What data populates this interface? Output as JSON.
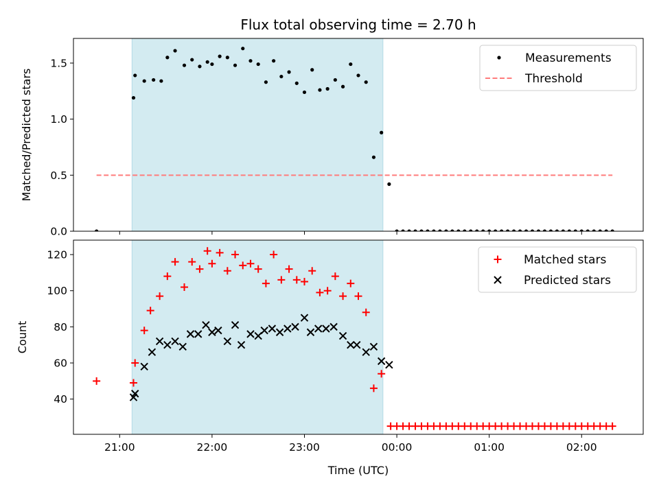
{
  "chart_data": {
    "title": "Flux total observing time = 2.70 h",
    "xlabel": "Time (UTC)",
    "x_unit": "hours UTC",
    "xlim": [
      "20:30",
      "02:40"
    ],
    "x_ticks": [
      {
        "value": "21:00",
        "label": "21:00"
      },
      {
        "value": "22:00",
        "label": "22:00"
      },
      {
        "value": "23:00",
        "label": "23:00"
      },
      {
        "value": "00:00",
        "label": "00:00"
      },
      {
        "value": "01:00",
        "label": "01:00"
      },
      {
        "value": "02:00",
        "label": "02:00"
      }
    ],
    "shaded_span": {
      "start": "21:08",
      "end": "23:51",
      "color": "#d3ebf1"
    },
    "panels": [
      {
        "type": "scatter",
        "ylabel": "Matched/Predicted stars",
        "ylim": [
          0,
          1.72
        ],
        "y_ticks": [
          "0.0",
          "0.5",
          "1.0",
          "1.5"
        ],
        "legend_position": "top-right",
        "series": [
          {
            "name": "Measurements",
            "marker": "dot",
            "color": "#000000",
            "points": [
              [
                "20:45",
                0.0
              ],
              [
                "21:09",
                1.19
              ],
              [
                "21:10",
                1.39
              ],
              [
                "21:16",
                1.34
              ],
              [
                "21:22",
                1.35
              ],
              [
                "21:27",
                1.34
              ],
              [
                "21:31",
                1.55
              ],
              [
                "21:36",
                1.61
              ],
              [
                "21:42",
                1.48
              ],
              [
                "21:47",
                1.53
              ],
              [
                "21:52",
                1.47
              ],
              [
                "21:57",
                1.51
              ],
              [
                "22:00",
                1.49
              ],
              [
                "22:05",
                1.56
              ],
              [
                "22:10",
                1.55
              ],
              [
                "22:15",
                1.48
              ],
              [
                "22:20",
                1.63
              ],
              [
                "22:25",
                1.52
              ],
              [
                "22:30",
                1.49
              ],
              [
                "22:35",
                1.33
              ],
              [
                "22:40",
                1.52
              ],
              [
                "22:45",
                1.38
              ],
              [
                "22:50",
                1.42
              ],
              [
                "22:55",
                1.32
              ],
              [
                "23:00",
                1.24
              ],
              [
                "23:05",
                1.44
              ],
              [
                "23:10",
                1.26
              ],
              [
                "23:15",
                1.27
              ],
              [
                "23:20",
                1.35
              ],
              [
                "23:25",
                1.29
              ],
              [
                "23:30",
                1.49
              ],
              [
                "23:35",
                1.39
              ],
              [
                "23:40",
                1.33
              ],
              [
                "23:45",
                0.66
              ],
              [
                "23:50",
                0.88
              ],
              [
                "23:55",
                0.42
              ],
              [
                "00:00",
                0.0
              ],
              [
                "00:04",
                0.0
              ],
              [
                "00:08",
                0.0
              ],
              [
                "00:12",
                0.0
              ],
              [
                "00:16",
                0.0
              ],
              [
                "00:20",
                0.0
              ],
              [
                "00:24",
                0.0
              ],
              [
                "00:28",
                0.0
              ],
              [
                "00:32",
                0.0
              ],
              [
                "00:36",
                0.0
              ],
              [
                "00:40",
                0.0
              ],
              [
                "00:44",
                0.0
              ],
              [
                "00:48",
                0.0
              ],
              [
                "00:52",
                0.0
              ],
              [
                "00:56",
                0.0
              ],
              [
                "01:00",
                0.0
              ],
              [
                "01:04",
                0.0
              ],
              [
                "01:08",
                0.0
              ],
              [
                "01:12",
                0.0
              ],
              [
                "01:16",
                0.0
              ],
              [
                "01:20",
                0.0
              ],
              [
                "01:24",
                0.0
              ],
              [
                "01:28",
                0.0
              ],
              [
                "01:32",
                0.0
              ],
              [
                "01:36",
                0.0
              ],
              [
                "01:40",
                0.0
              ],
              [
                "01:44",
                0.0
              ],
              [
                "01:48",
                0.0
              ],
              [
                "01:52",
                0.0
              ],
              [
                "01:56",
                0.0
              ],
              [
                "02:00",
                0.0
              ],
              [
                "02:04",
                0.0
              ],
              [
                "02:08",
                0.0
              ],
              [
                "02:12",
                0.0
              ],
              [
                "02:16",
                0.0
              ],
              [
                "02:20",
                0.0
              ]
            ]
          },
          {
            "name": "Threshold",
            "marker": "dashed-line",
            "color": "#ff7b7b",
            "points": [
              [
                "20:45",
                0.5
              ],
              [
                "02:20",
                0.5
              ]
            ]
          }
        ]
      },
      {
        "type": "scatter",
        "ylabel": "Count",
        "ylim": [
          20.5,
          128
        ],
        "y_ticks": [
          "40",
          "60",
          "80",
          "100",
          "120"
        ],
        "legend_position": "top-right",
        "series": [
          {
            "name": "Matched stars",
            "marker": "plus",
            "color": "#ff0000",
            "points": [
              [
                "20:45",
                50
              ],
              [
                "21:09",
                49
              ],
              [
                "21:10",
                60
              ],
              [
                "21:16",
                78
              ],
              [
                "21:20",
                89
              ],
              [
                "21:26",
                97
              ],
              [
                "21:31",
                108
              ],
              [
                "21:36",
                116
              ],
              [
                "21:42",
                102
              ],
              [
                "21:47",
                116
              ],
              [
                "21:52",
                112
              ],
              [
                "21:57",
                122
              ],
              [
                "22:00",
                115
              ],
              [
                "22:05",
                121
              ],
              [
                "22:10",
                111
              ],
              [
                "22:15",
                120
              ],
              [
                "22:20",
                114
              ],
              [
                "22:25",
                115
              ],
              [
                "22:30",
                112
              ],
              [
                "22:35",
                104
              ],
              [
                "22:40",
                120
              ],
              [
                "22:45",
                106
              ],
              [
                "22:50",
                112
              ],
              [
                "22:55",
                106
              ],
              [
                "23:00",
                105
              ],
              [
                "23:05",
                111
              ],
              [
                "23:10",
                99
              ],
              [
                "23:15",
                100
              ],
              [
                "23:20",
                108
              ],
              [
                "23:25",
                97
              ],
              [
                "23:30",
                104
              ],
              [
                "23:35",
                97
              ],
              [
                "23:40",
                88
              ],
              [
                "23:45",
                46
              ],
              [
                "23:50",
                54
              ],
              [
                "23:56",
                25
              ],
              [
                "00:00",
                25
              ],
              [
                "00:04",
                25
              ],
              [
                "00:08",
                25
              ],
              [
                "00:12",
                25
              ],
              [
                "00:16",
                25
              ],
              [
                "00:20",
                25
              ],
              [
                "00:24",
                25
              ],
              [
                "00:28",
                25
              ],
              [
                "00:32",
                25
              ],
              [
                "00:36",
                25
              ],
              [
                "00:40",
                25
              ],
              [
                "00:44",
                25
              ],
              [
                "00:48",
                25
              ],
              [
                "00:52",
                25
              ],
              [
                "00:56",
                25
              ],
              [
                "01:00",
                25
              ],
              [
                "01:04",
                25
              ],
              [
                "01:08",
                25
              ],
              [
                "01:12",
                25
              ],
              [
                "01:16",
                25
              ],
              [
                "01:20",
                25
              ],
              [
                "01:24",
                25
              ],
              [
                "01:28",
                25
              ],
              [
                "01:32",
                25
              ],
              [
                "01:36",
                25
              ],
              [
                "01:40",
                25
              ],
              [
                "01:44",
                25
              ],
              [
                "01:48",
                25
              ],
              [
                "01:52",
                25
              ],
              [
                "01:56",
                25
              ],
              [
                "02:00",
                25
              ],
              [
                "02:04",
                25
              ],
              [
                "02:08",
                25
              ],
              [
                "02:12",
                25
              ],
              [
                "02:16",
                25
              ],
              [
                "02:20",
                25
              ]
            ]
          },
          {
            "name": "Predicted stars",
            "marker": "x",
            "color": "#000000",
            "points": [
              [
                "21:09",
                41
              ],
              [
                "21:10",
                43
              ],
              [
                "21:16",
                58
              ],
              [
                "21:21",
                66
              ],
              [
                "21:26",
                72
              ],
              [
                "21:31",
                70
              ],
              [
                "21:36",
                72
              ],
              [
                "21:41",
                69
              ],
              [
                "21:46",
                76
              ],
              [
                "21:51",
                76
              ],
              [
                "21:56",
                81
              ],
              [
                "22:00",
                77
              ],
              [
                "22:04",
                78
              ],
              [
                "22:10",
                72
              ],
              [
                "22:15",
                81
              ],
              [
                "22:19",
                70
              ],
              [
                "22:25",
                76
              ],
              [
                "22:30",
                75
              ],
              [
                "22:34",
                78
              ],
              [
                "22:39",
                79
              ],
              [
                "22:44",
                77
              ],
              [
                "22:49",
                79
              ],
              [
                "22:54",
                80
              ],
              [
                "23:00",
                85
              ],
              [
                "23:04",
                77
              ],
              [
                "23:09",
                79
              ],
              [
                "23:14",
                79
              ],
              [
                "23:19",
                80
              ],
              [
                "23:25",
                75
              ],
              [
                "23:30",
                70
              ],
              [
                "23:34",
                70
              ],
              [
                "23:40",
                66
              ],
              [
                "23:45",
                69
              ],
              [
                "23:50",
                61
              ],
              [
                "23:55",
                59
              ]
            ]
          }
        ]
      }
    ]
  }
}
